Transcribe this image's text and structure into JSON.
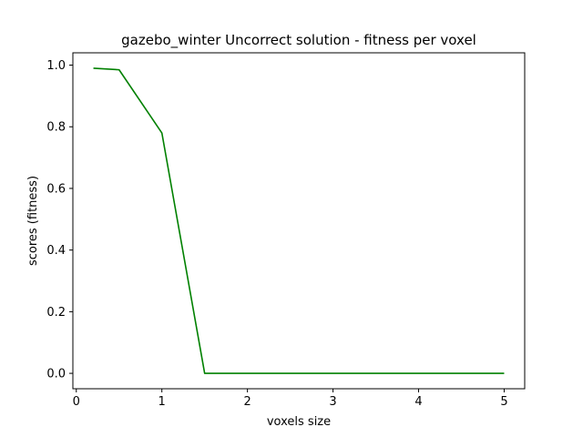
{
  "chart_data": {
    "type": "line",
    "title": "gazebo_winter Uncorrect solution - fitness per voxel",
    "xlabel": "voxels size",
    "ylabel": "scores (fitness)",
    "xlim": [
      -0.04,
      5.24
    ],
    "ylim": [
      -0.05,
      1.04
    ],
    "x_ticks": [
      0,
      1,
      2,
      3,
      4,
      5
    ],
    "x_tick_labels": [
      "0",
      "1",
      "2",
      "3",
      "4",
      "5"
    ],
    "y_ticks": [
      0.0,
      0.2,
      0.4,
      0.6,
      0.8,
      1.0
    ],
    "y_tick_labels": [
      "0.0",
      "0.2",
      "0.4",
      "0.6",
      "0.8",
      "1.0"
    ],
    "grid": false,
    "series": [
      {
        "color": "#008000",
        "x": [
          0.2,
          0.5,
          1.0,
          1.5,
          2.0,
          2.5,
          3.0,
          3.5,
          4.0,
          4.5,
          5.0
        ],
        "y": [
          0.99,
          0.985,
          0.78,
          0.0,
          0.0,
          0.0,
          0.0,
          0.0,
          0.0,
          0.0,
          0.0
        ]
      }
    ]
  }
}
